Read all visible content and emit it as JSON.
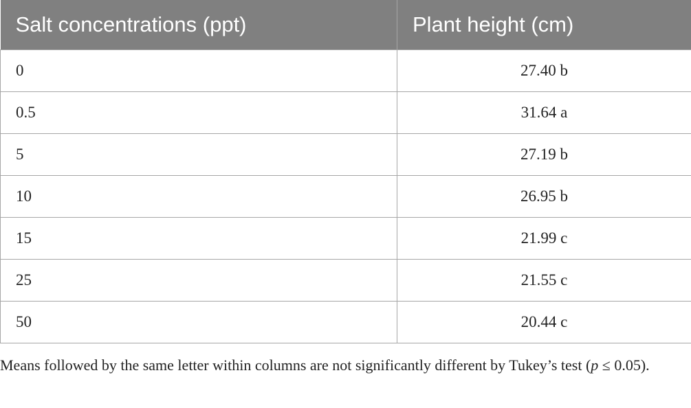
{
  "table": {
    "header": [
      "Salt concentrations (ppt)",
      "Plant height (cm)"
    ],
    "rows": [
      [
        "0",
        "27.40 b"
      ],
      [
        "0.5",
        "31.64 a"
      ],
      [
        "5",
        "27.19 b"
      ],
      [
        "10",
        "26.95 b"
      ],
      [
        "15",
        "21.99 c"
      ],
      [
        "25",
        "21.55 c"
      ],
      [
        "50",
        "20.44 c"
      ]
    ]
  },
  "footnote": {
    "before": "Means followed by the same letter within columns are not significantly different by Tukey’s test (",
    "italic": "p",
    "after": " ≤ 0.05)."
  }
}
